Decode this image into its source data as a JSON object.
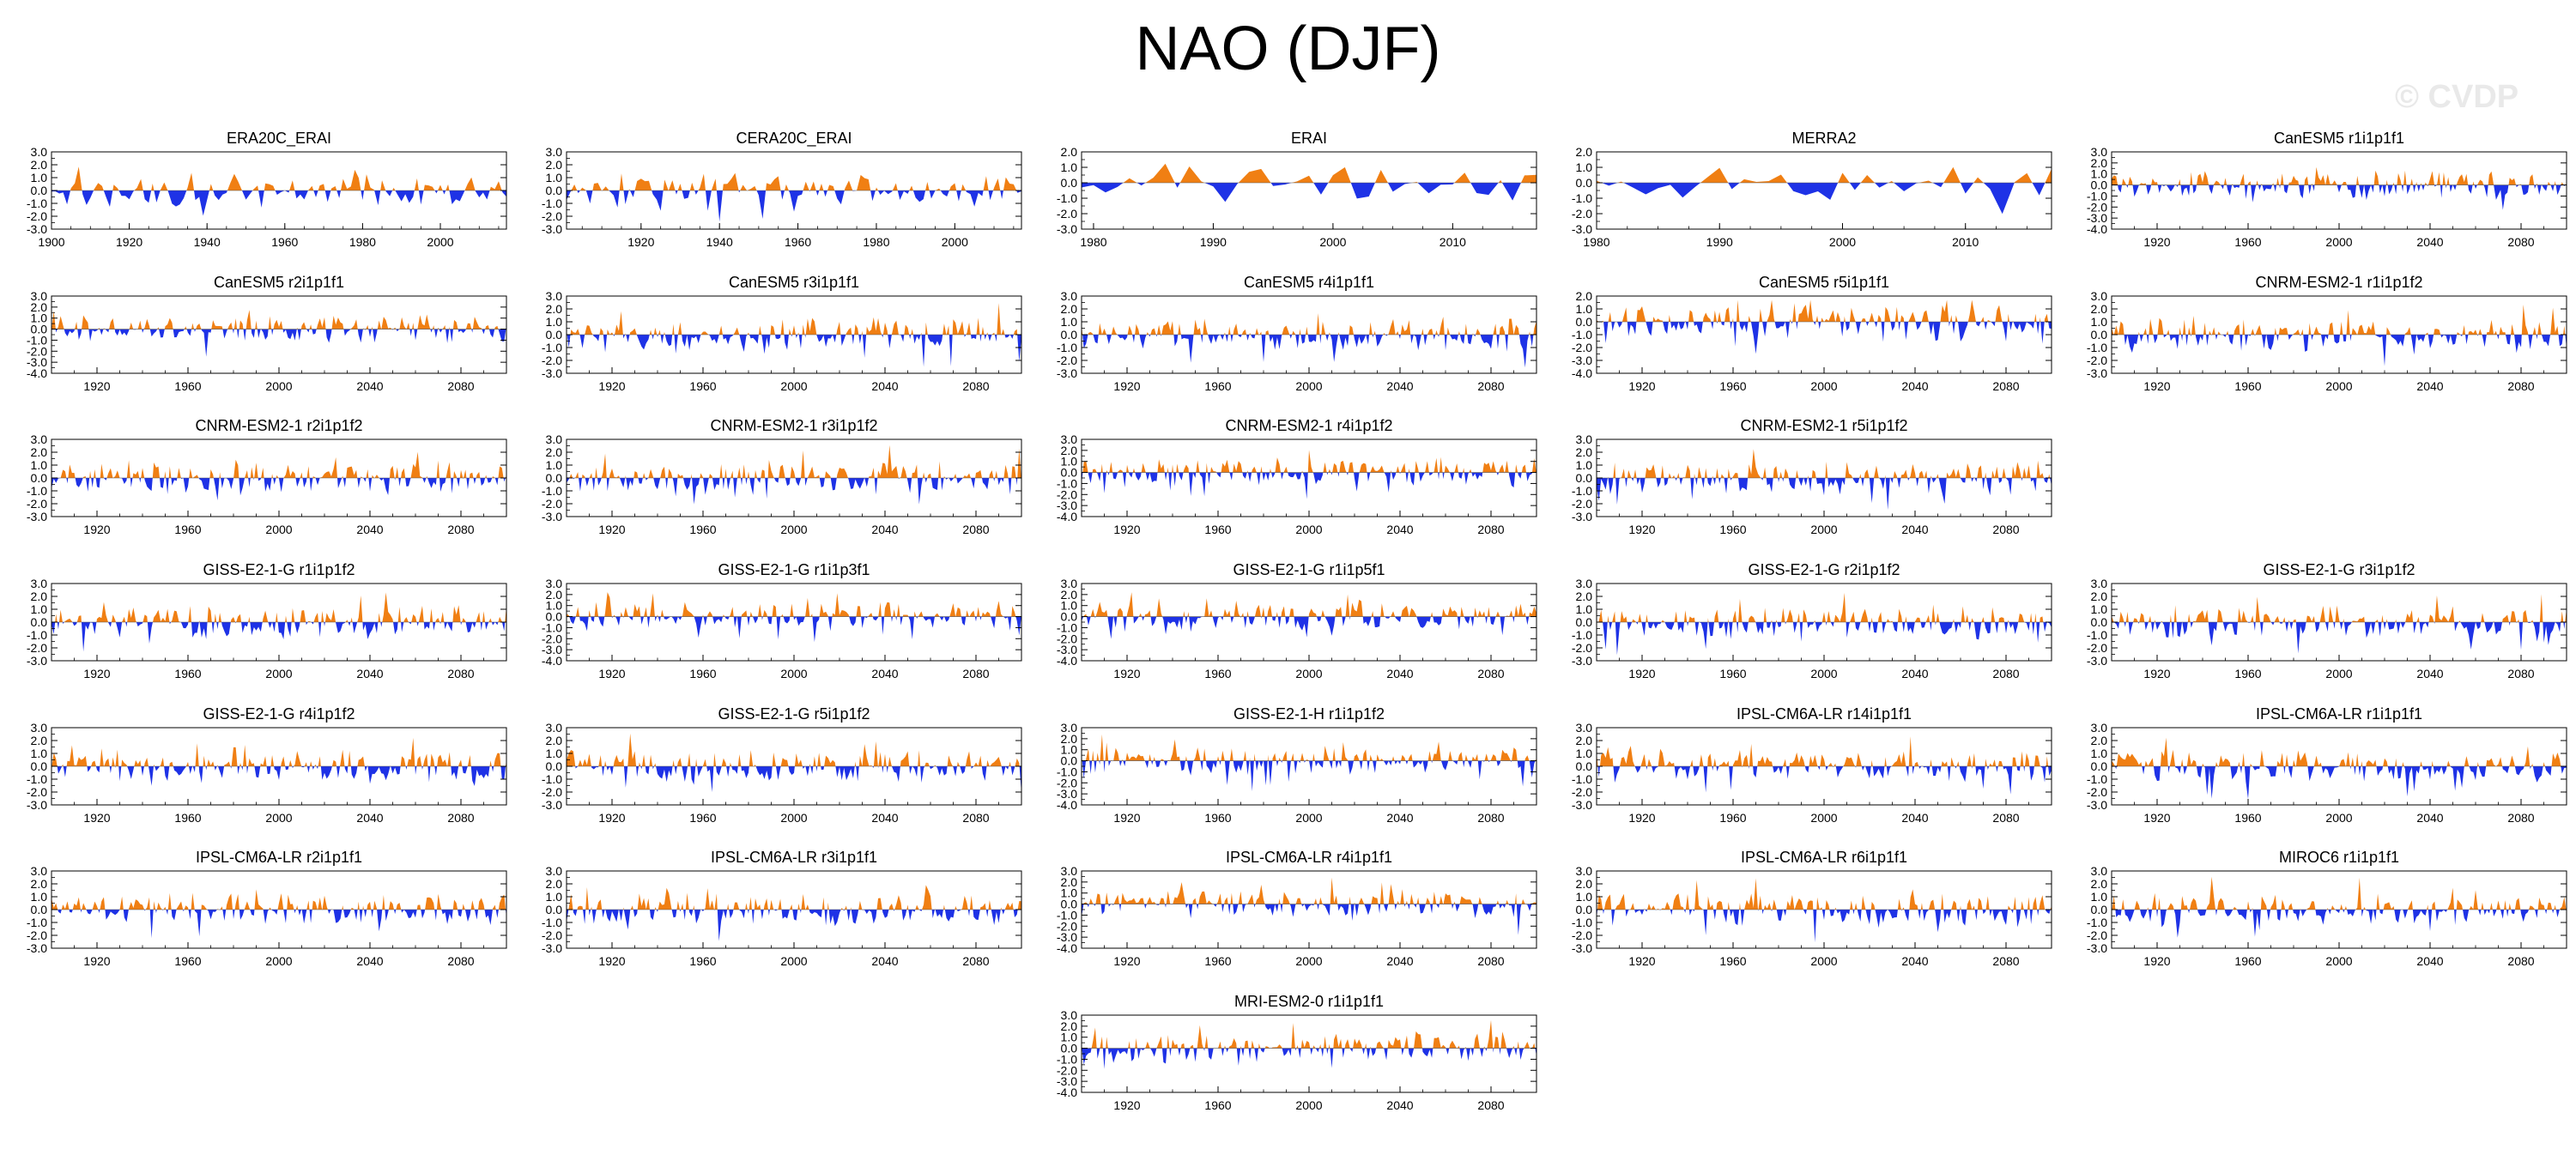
{
  "title": "NAO (DJF)",
  "watermark": "© CVDP",
  "colors": {
    "positive": "#f07f13",
    "negative": "#1e32e6",
    "axis": "#000000"
  },
  "chart_data": [
    {
      "title": "ERA20C_ERAI",
      "type": "area",
      "x_range": [
        1900,
        2017
      ],
      "x_ticks": [
        1900,
        1920,
        1940,
        1960,
        1980,
        2000
      ],
      "ylim": [
        -3.0,
        3.0
      ],
      "y_ticks": [
        3.0,
        2.0,
        1.0,
        0.0,
        -1.0,
        -2.0,
        -3.0
      ]
    },
    {
      "title": "CERA20C_ERAI",
      "type": "area",
      "x_range": [
        1901,
        2017
      ],
      "x_ticks": [
        1920,
        1940,
        1960,
        1980,
        2000
      ],
      "ylim": [
        -3.0,
        3.0
      ],
      "y_ticks": [
        3.0,
        2.0,
        1.0,
        0.0,
        -1.0,
        -2.0,
        -3.0
      ]
    },
    {
      "title": "ERAI",
      "type": "area",
      "x_range": [
        1979,
        2017
      ],
      "x_ticks": [
        1980,
        1990,
        2000,
        2010
      ],
      "ylim": [
        -3.0,
        2.0
      ],
      "y_ticks": [
        2.0,
        1.0,
        0.0,
        -1.0,
        -2.0,
        -3.0
      ]
    },
    {
      "title": "MERRA2",
      "type": "area",
      "x_range": [
        1980,
        2017
      ],
      "x_ticks": [
        1980,
        1990,
        2000,
        2010
      ],
      "ylim": [
        -3.0,
        2.0
      ],
      "y_ticks": [
        2.0,
        1.0,
        0.0,
        -1.0,
        -2.0,
        -3.0
      ]
    },
    {
      "title": "CanESM5 r1i1p1f1",
      "type": "area",
      "x_range": [
        1900,
        2100
      ],
      "x_ticks": [
        1920,
        1960,
        2000,
        2040,
        2080
      ],
      "ylim": [
        -4.0,
        3.0
      ],
      "y_ticks": [
        3.0,
        2.0,
        1.0,
        0.0,
        -1.0,
        -2.0,
        -3.0,
        -4.0
      ]
    },
    {
      "title": "CanESM5 r2i1p1f1",
      "type": "area",
      "x_range": [
        1900,
        2100
      ],
      "x_ticks": [
        1920,
        1960,
        2000,
        2040,
        2080
      ],
      "ylim": [
        -4.0,
        3.0
      ],
      "y_ticks": [
        3.0,
        2.0,
        1.0,
        0.0,
        -1.0,
        -2.0,
        -3.0,
        -4.0
      ]
    },
    {
      "title": "CanESM5 r3i1p1f1",
      "type": "area",
      "x_range": [
        1900,
        2100
      ],
      "x_ticks": [
        1920,
        1960,
        2000,
        2040,
        2080
      ],
      "ylim": [
        -3.0,
        3.0
      ],
      "y_ticks": [
        3.0,
        2.0,
        1.0,
        0.0,
        -1.0,
        -2.0,
        -3.0
      ]
    },
    {
      "title": "CanESM5 r4i1p1f1",
      "type": "area",
      "x_range": [
        1900,
        2100
      ],
      "x_ticks": [
        1920,
        1960,
        2000,
        2040,
        2080
      ],
      "ylim": [
        -3.0,
        3.0
      ],
      "y_ticks": [
        3.0,
        2.0,
        1.0,
        0.0,
        -1.0,
        -2.0,
        -3.0
      ]
    },
    {
      "title": "CanESM5 r5i1p1f1",
      "type": "area",
      "x_range": [
        1900,
        2100
      ],
      "x_ticks": [
        1920,
        1960,
        2000,
        2040,
        2080
      ],
      "ylim": [
        -4.0,
        2.0
      ],
      "y_ticks": [
        2.0,
        1.0,
        0.0,
        -1.0,
        -2.0,
        -3.0,
        -4.0
      ]
    },
    {
      "title": "CNRM-ESM2-1 r1i1p1f2",
      "type": "area",
      "x_range": [
        1900,
        2100
      ],
      "x_ticks": [
        1920,
        1960,
        2000,
        2040,
        2080
      ],
      "ylim": [
        -3.0,
        3.0
      ],
      "y_ticks": [
        3.0,
        2.0,
        1.0,
        0.0,
        -1.0,
        -2.0,
        -3.0
      ]
    },
    {
      "title": "CNRM-ESM2-1 r2i1p1f2",
      "type": "area",
      "x_range": [
        1900,
        2100
      ],
      "x_ticks": [
        1920,
        1960,
        2000,
        2040,
        2080
      ],
      "ylim": [
        -3.0,
        3.0
      ],
      "y_ticks": [
        3.0,
        2.0,
        1.0,
        0.0,
        -1.0,
        -2.0,
        -3.0
      ]
    },
    {
      "title": "CNRM-ESM2-1 r3i1p1f2",
      "type": "area",
      "x_range": [
        1900,
        2100
      ],
      "x_ticks": [
        1920,
        1960,
        2000,
        2040,
        2080
      ],
      "ylim": [
        -3.0,
        3.0
      ],
      "y_ticks": [
        3.0,
        2.0,
        1.0,
        0.0,
        -1.0,
        -2.0,
        -3.0
      ]
    },
    {
      "title": "CNRM-ESM2-1 r4i1p1f2",
      "type": "area",
      "x_range": [
        1900,
        2100
      ],
      "x_ticks": [
        1920,
        1960,
        2000,
        2040,
        2080
      ],
      "ylim": [
        -4.0,
        3.0
      ],
      "y_ticks": [
        3.0,
        2.0,
        1.0,
        0.0,
        -1.0,
        -2.0,
        -3.0,
        -4.0
      ]
    },
    {
      "title": "CNRM-ESM2-1 r5i1p1f2",
      "type": "area",
      "x_range": [
        1900,
        2100
      ],
      "x_ticks": [
        1920,
        1960,
        2000,
        2040,
        2080
      ],
      "ylim": [
        -3.0,
        3.0
      ],
      "y_ticks": [
        3.0,
        2.0,
        1.0,
        0.0,
        -1.0,
        -2.0,
        -3.0
      ]
    },
    {
      "title": "GISS-E2-1-G r1i1p1f2",
      "type": "area",
      "x_range": [
        1900,
        2100
      ],
      "x_ticks": [
        1920,
        1960,
        2000,
        2040,
        2080
      ],
      "ylim": [
        -3.0,
        3.0
      ],
      "y_ticks": [
        3.0,
        2.0,
        1.0,
        0.0,
        -1.0,
        -2.0,
        -3.0
      ]
    },
    {
      "title": "GISS-E2-1-G r1i1p3f1",
      "type": "area",
      "x_range": [
        1900,
        2100
      ],
      "x_ticks": [
        1920,
        1960,
        2000,
        2040,
        2080
      ],
      "ylim": [
        -4.0,
        3.0
      ],
      "y_ticks": [
        3.0,
        2.0,
        1.0,
        0.0,
        -1.0,
        -2.0,
        -3.0,
        -4.0
      ]
    },
    {
      "title": "GISS-E2-1-G r1i1p5f1",
      "type": "area",
      "x_range": [
        1900,
        2100
      ],
      "x_ticks": [
        1920,
        1960,
        2000,
        2040,
        2080
      ],
      "ylim": [
        -4.0,
        3.0
      ],
      "y_ticks": [
        3.0,
        2.0,
        1.0,
        0.0,
        -1.0,
        -2.0,
        -3.0,
        -4.0
      ]
    },
    {
      "title": "GISS-E2-1-G r2i1p1f2",
      "type": "area",
      "x_range": [
        1900,
        2100
      ],
      "x_ticks": [
        1920,
        1960,
        2000,
        2040,
        2080
      ],
      "ylim": [
        -3.0,
        3.0
      ],
      "y_ticks": [
        3.0,
        2.0,
        1.0,
        0.0,
        -1.0,
        -2.0,
        -3.0
      ]
    },
    {
      "title": "GISS-E2-1-G r3i1p1f2",
      "type": "area",
      "x_range": [
        1900,
        2100
      ],
      "x_ticks": [
        1920,
        1960,
        2000,
        2040,
        2080
      ],
      "ylim": [
        -3.0,
        3.0
      ],
      "y_ticks": [
        3.0,
        2.0,
        1.0,
        0.0,
        -1.0,
        -2.0,
        -3.0
      ]
    },
    {
      "title": "GISS-E2-1-G r4i1p1f2",
      "type": "area",
      "x_range": [
        1900,
        2100
      ],
      "x_ticks": [
        1920,
        1960,
        2000,
        2040,
        2080
      ],
      "ylim": [
        -3.0,
        3.0
      ],
      "y_ticks": [
        3.0,
        2.0,
        1.0,
        0.0,
        -1.0,
        -2.0,
        -3.0
      ]
    },
    {
      "title": "GISS-E2-1-G r5i1p1f2",
      "type": "area",
      "x_range": [
        1900,
        2100
      ],
      "x_ticks": [
        1920,
        1960,
        2000,
        2040,
        2080
      ],
      "ylim": [
        -3.0,
        3.0
      ],
      "y_ticks": [
        3.0,
        2.0,
        1.0,
        0.0,
        -1.0,
        -2.0,
        -3.0
      ]
    },
    {
      "title": "GISS-E2-1-H r1i1p1f2",
      "type": "area",
      "x_range": [
        1900,
        2100
      ],
      "x_ticks": [
        1920,
        1960,
        2000,
        2040,
        2080
      ],
      "ylim": [
        -4.0,
        3.0
      ],
      "y_ticks": [
        3.0,
        2.0,
        1.0,
        0.0,
        -1.0,
        -2.0,
        -3.0,
        -4.0
      ]
    },
    {
      "title": "IPSL-CM6A-LR r14i1p1f1",
      "type": "area",
      "x_range": [
        1900,
        2100
      ],
      "x_ticks": [
        1920,
        1960,
        2000,
        2040,
        2080
      ],
      "ylim": [
        -3.0,
        3.0
      ],
      "y_ticks": [
        3.0,
        2.0,
        1.0,
        0.0,
        -1.0,
        -2.0,
        -3.0
      ]
    },
    {
      "title": "IPSL-CM6A-LR r1i1p1f1",
      "type": "area",
      "x_range": [
        1900,
        2100
      ],
      "x_ticks": [
        1920,
        1960,
        2000,
        2040,
        2080
      ],
      "ylim": [
        -3.0,
        3.0
      ],
      "y_ticks": [
        3.0,
        2.0,
        1.0,
        0.0,
        -1.0,
        -2.0,
        -3.0
      ]
    },
    {
      "title": "IPSL-CM6A-LR r2i1p1f1",
      "type": "area",
      "x_range": [
        1900,
        2100
      ],
      "x_ticks": [
        1920,
        1960,
        2000,
        2040,
        2080
      ],
      "ylim": [
        -3.0,
        3.0
      ],
      "y_ticks": [
        3.0,
        2.0,
        1.0,
        0.0,
        -1.0,
        -2.0,
        -3.0
      ]
    },
    {
      "title": "IPSL-CM6A-LR r3i1p1f1",
      "type": "area",
      "x_range": [
        1900,
        2100
      ],
      "x_ticks": [
        1920,
        1960,
        2000,
        2040,
        2080
      ],
      "ylim": [
        -3.0,
        3.0
      ],
      "y_ticks": [
        3.0,
        2.0,
        1.0,
        0.0,
        -1.0,
        -2.0,
        -3.0
      ]
    },
    {
      "title": "IPSL-CM6A-LR r4i1p1f1",
      "type": "area",
      "x_range": [
        1900,
        2100
      ],
      "x_ticks": [
        1920,
        1960,
        2000,
        2040,
        2080
      ],
      "ylim": [
        -4.0,
        3.0
      ],
      "y_ticks": [
        3.0,
        2.0,
        1.0,
        0.0,
        -1.0,
        -2.0,
        -3.0,
        -4.0
      ]
    },
    {
      "title": "IPSL-CM6A-LR r6i1p1f1",
      "type": "area",
      "x_range": [
        1900,
        2100
      ],
      "x_ticks": [
        1920,
        1960,
        2000,
        2040,
        2080
      ],
      "ylim": [
        -3.0,
        3.0
      ],
      "y_ticks": [
        3.0,
        2.0,
        1.0,
        0.0,
        -1.0,
        -2.0,
        -3.0
      ]
    },
    {
      "title": "MIROC6 r1i1p1f1",
      "type": "area",
      "x_range": [
        1900,
        2100
      ],
      "x_ticks": [
        1920,
        1960,
        2000,
        2040,
        2080
      ],
      "ylim": [
        -3.0,
        3.0
      ],
      "y_ticks": [
        3.0,
        2.0,
        1.0,
        0.0,
        -1.0,
        -2.0,
        -3.0
      ]
    },
    {
      "title": "MRI-ESM2-0 r1i1p1f1",
      "type": "area",
      "x_range": [
        1900,
        2100
      ],
      "x_ticks": [
        1920,
        1960,
        2000,
        2040,
        2080
      ],
      "ylim": [
        -4.0,
        3.0
      ],
      "y_ticks": [
        3.0,
        2.0,
        1.0,
        0.0,
        -1.0,
        -2.0,
        -3.0,
        -4.0
      ]
    }
  ]
}
